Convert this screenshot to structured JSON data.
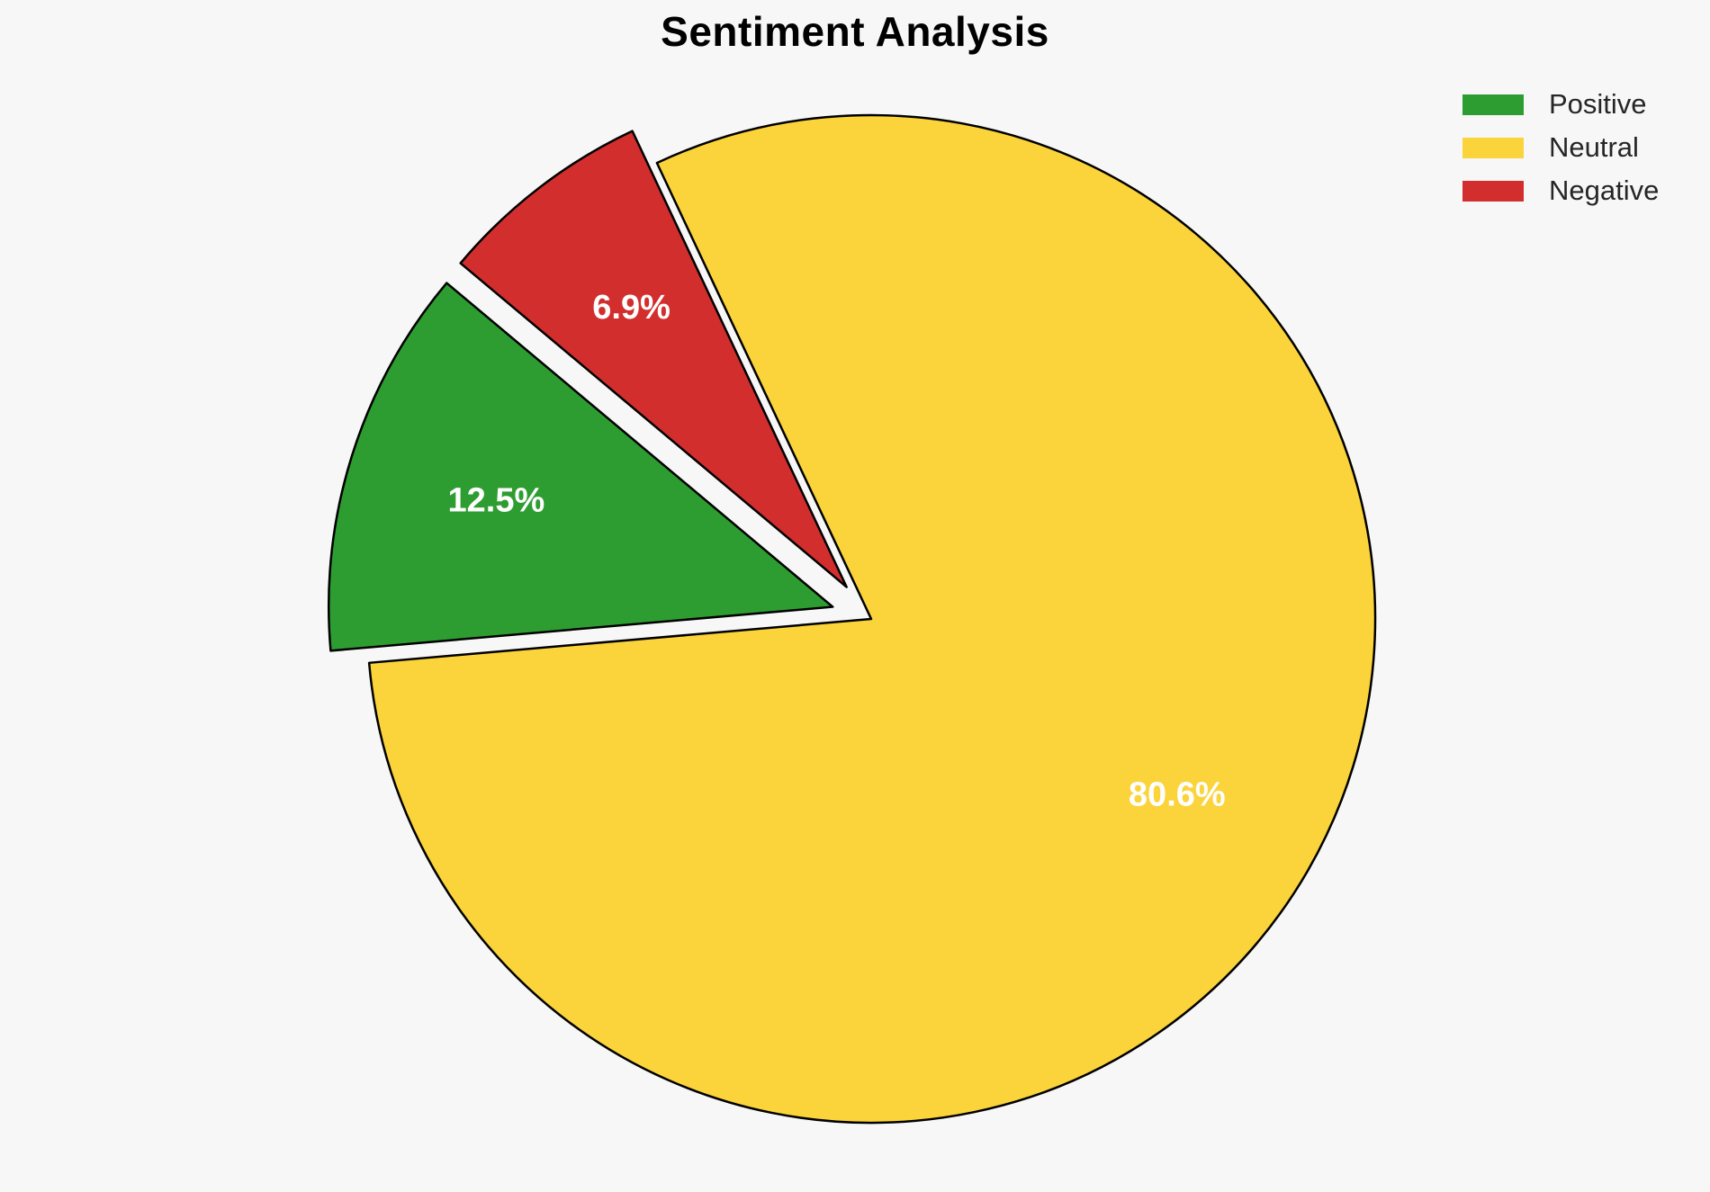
{
  "title": "Sentiment Analysis",
  "background": "#F7F7F7",
  "chart_data": {
    "type": "pie",
    "title": "Sentiment Analysis",
    "series": [
      {
        "label": "Positive",
        "value": 12.5,
        "display": "12.5%",
        "color": "#2E9D31",
        "explode": 0.08
      },
      {
        "label": "Neutral",
        "value": 80.6,
        "display": "80.6%",
        "color": "#FBD33B",
        "explode": 0
      },
      {
        "label": "Negative",
        "value": 6.9,
        "display": "6.9%",
        "color": "#D32E2E",
        "explode": 0.08
      }
    ],
    "start_angle": 140,
    "direction": "counterclockwise",
    "pct_distance": 0.7,
    "edge_color": "#000000",
    "pct_label_color": "#FFFFFF",
    "legend_position": "upper right",
    "legend_labels": [
      "Positive",
      "Neutral",
      "Negative"
    ]
  }
}
